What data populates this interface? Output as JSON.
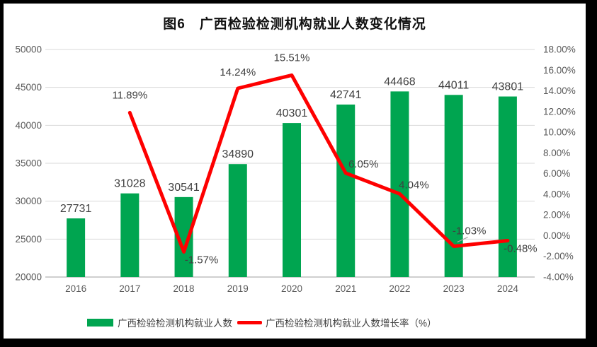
{
  "title": "图6　广西检验检测机构就业人数变化情况",
  "colors": {
    "bar": "#00A550",
    "line": "#FE0000",
    "grid": "#D9D9D9",
    "axis_line": "#BFBFBF",
    "tick_text": "#595959",
    "data_label_text": "#404040",
    "leader": "#A6A6A6",
    "frame": "#000000",
    "background": "#FFFFFF"
  },
  "chart_data": {
    "type": "combo-bar-line",
    "title": "图6　广西检验检测机构就业人数变化情况",
    "categories": [
      "2016",
      "2017",
      "2018",
      "2019",
      "2020",
      "2021",
      "2022",
      "2023",
      "2024"
    ],
    "series": [
      {
        "name": "广西检验检测机构就业人数",
        "type": "bar",
        "axis": "left",
        "color": "#00A550",
        "values": [
          27731,
          31028,
          30541,
          34890,
          40301,
          42741,
          44468,
          44011,
          43801
        ],
        "labels": [
          "27731",
          "31028",
          "30541",
          "34890",
          "40301",
          "42741",
          "44468",
          "44011",
          "43801"
        ]
      },
      {
        "name": "广西检验检测机构就业人数增长率（%）",
        "type": "line",
        "axis": "right",
        "color": "#FE0000",
        "values": [
          null,
          11.89,
          -1.57,
          14.24,
          15.51,
          6.05,
          4.04,
          -1.03,
          -0.48
        ],
        "labels": [
          null,
          "11.89%",
          "-1.57%",
          "14.24%",
          "15.51%",
          "6.05%",
          "4.04%",
          "-1.03%",
          "-0.48%"
        ]
      }
    ],
    "left_axis": {
      "min": 20000,
      "max": 50000,
      "step": 5000,
      "tick_labels": [
        "50000",
        "45000",
        "40000",
        "35000",
        "30000",
        "25000",
        "20000"
      ]
    },
    "right_axis": {
      "min": -4,
      "max": 18,
      "step": 2,
      "tick_labels": [
        "18.00%",
        "16.00%",
        "14.00%",
        "12.00%",
        "10.00%",
        "8.00%",
        "6.00%",
        "4.00%",
        "2.00%",
        "0.00%",
        "-2.00%",
        "-4.00%"
      ]
    },
    "grid": true,
    "legend_position": "bottom"
  }
}
